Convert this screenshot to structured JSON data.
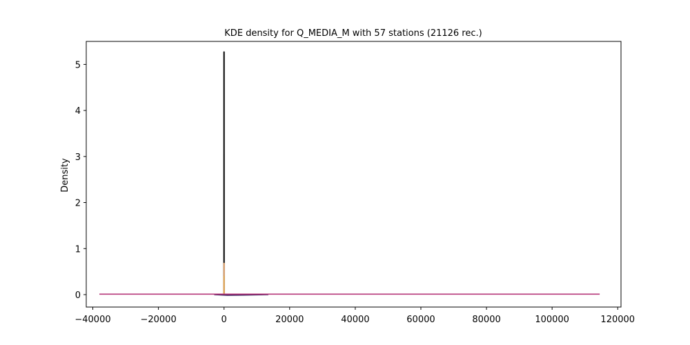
{
  "chart_data": {
    "type": "line",
    "title": "KDE density for Q_MEDIA_M with 57 stations (21126 rec.)",
    "xlabel": "",
    "ylabel": "Density",
    "xlim": [
      -42000,
      121000
    ],
    "ylim": [
      -0.27,
      5.5
    ],
    "xticks": [
      -40000,
      -20000,
      0,
      20000,
      40000,
      60000,
      80000,
      100000,
      120000
    ],
    "xtick_labels": [
      "−40000",
      "−20000",
      "0",
      "20000",
      "40000",
      "60000",
      "80000",
      "100000",
      "120000"
    ],
    "yticks": [
      0,
      1,
      2,
      3,
      4,
      5
    ],
    "ytick_labels": [
      "0",
      "1",
      "2",
      "3",
      "4",
      "5"
    ],
    "grid": false,
    "legend": "none",
    "series": [
      {
        "color": "#000000",
        "x": [
          -15,
          -5,
          0,
          5,
          15
        ],
        "y": [
          0,
          0,
          5.27,
          0,
          0
        ]
      },
      {
        "color": "#fdae6b",
        "x": [
          -20,
          -5,
          0,
          5,
          20
        ],
        "y": [
          0,
          0,
          0.68,
          0,
          0
        ]
      },
      {
        "color": "#feb24c",
        "x": [
          -10,
          0,
          10
        ],
        "y": [
          0,
          0.4,
          0
        ]
      },
      {
        "color": "#2d0a4e",
        "x": [
          -3000,
          1000,
          6000,
          13500
        ],
        "y": [
          0.0,
          -0.012,
          -0.008,
          0.0
        ]
      },
      {
        "color": "#b5367a",
        "x": [
          -38000,
          0,
          50000,
          114500
        ],
        "y": [
          0.01,
          0.01,
          0.01,
          0.01
        ]
      }
    ]
  }
}
